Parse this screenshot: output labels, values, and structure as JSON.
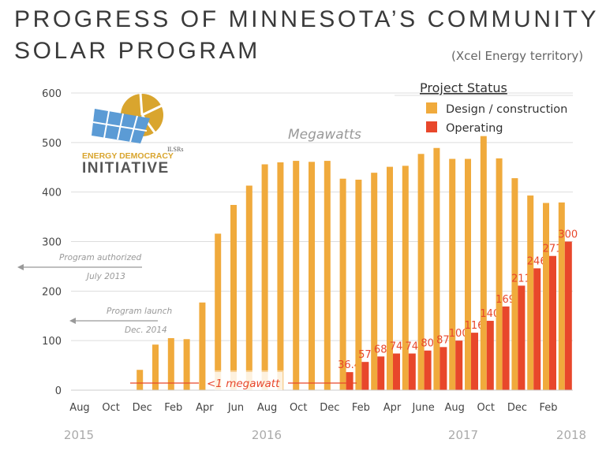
{
  "title": {
    "line1": "PROGRESS OF MINNESOTA’S COMMUNITY",
    "line2": "SOLAR PROGRAM",
    "subtitle": "(Xcel Energy territory)"
  },
  "logo": {
    "small_text": "ILSRs",
    "line1": "ENERGY DEMOCRACY",
    "line2": "INITIATIVE"
  },
  "colors": {
    "design": "#f0aa3c",
    "operating": "#e8472b",
    "grid": "#dddddd"
  },
  "chart_data": {
    "type": "bar",
    "ylabel": "Megawatts",
    "ylim": [
      0,
      600
    ],
    "yticks": [
      0,
      100,
      200,
      300,
      400,
      500,
      600
    ],
    "grid": true,
    "legend": {
      "title": "Project Status",
      "placement": "top-right",
      "entries": [
        "Design / construction",
        "Operating"
      ]
    },
    "months": [
      "2015-08",
      "2015-09",
      "2015-10",
      "2015-11",
      "2015-12",
      "2016-01",
      "2016-02",
      "2016-03",
      "2016-04",
      "2016-05",
      "2016-06",
      "2016-07",
      "2016-08",
      "2016-09",
      "2016-10",
      "2016-11",
      "2016-12",
      "2017-01",
      "2017-02",
      "2017-03",
      "2017-04",
      "2017-05",
      "2017-06",
      "2017-07",
      "2017-08",
      "2017-09",
      "2017-10",
      "2017-11",
      "2017-12",
      "2018-01",
      "2018-02",
      "2018-03"
    ],
    "x_tick_labels": [
      "Aug",
      "Oct",
      "Dec",
      "Feb",
      "Apr",
      "Jun",
      "Aug",
      "Oct",
      "Dec",
      "Feb",
      "Apr",
      "June",
      "Aug",
      "Oct",
      "Dec",
      "Feb"
    ],
    "year_labels": [
      "2015",
      "2016",
      "2017",
      "2018"
    ],
    "series": [
      {
        "name": "Design / construction",
        "values": [
          null,
          null,
          null,
          null,
          41,
          92,
          105,
          103,
          177,
          316,
          374,
          413,
          456,
          460,
          463,
          461,
          463,
          427,
          425,
          439,
          451,
          453,
          477,
          489,
          467,
          467,
          513,
          468,
          428,
          393,
          378,
          379
        ]
      },
      {
        "name": "Operating",
        "values": [
          null,
          null,
          null,
          null,
          null,
          null,
          null,
          null,
          null,
          null,
          null,
          null,
          null,
          null,
          null,
          null,
          null,
          36.4,
          57,
          68,
          74,
          74,
          80,
          87,
          100,
          116,
          140,
          169,
          211,
          246,
          271,
          300
        ]
      }
    ],
    "operating_data_labels": [
      "36.4",
      "57",
      "68",
      "74",
      "74",
      "80",
      "87",
      "100",
      "116",
      "140",
      "169",
      "211",
      "246",
      "271",
      "300"
    ],
    "annotations": {
      "authorized": {
        "line1": "Program authorized",
        "line2": "July 2013"
      },
      "launch": {
        "line1": "Program launch",
        "line2": "Dec. 2014"
      },
      "under_one": "<1 megawatt"
    }
  }
}
